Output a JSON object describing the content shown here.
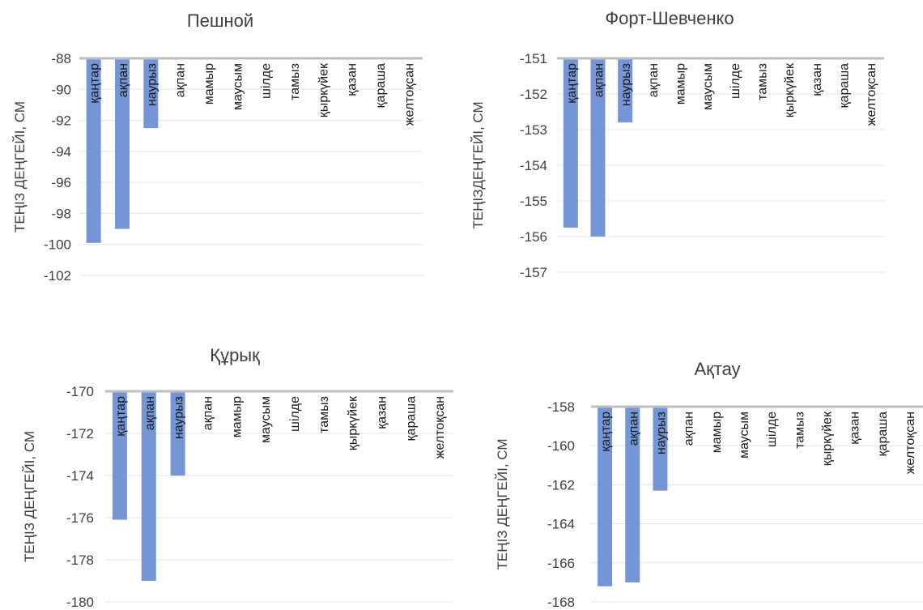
{
  "colors": {
    "bar": "#7496d6",
    "axis": "#bfbfbf",
    "grid": "#e6e6e6",
    "text": "#404040"
  },
  "chart_data": [
    {
      "type": "bar",
      "title": "Пешной",
      "ylabel": "ТЕҢІЗ ДЕҢГЕЙІ, СМ",
      "xlabel": "",
      "categories": [
        "қаңтар",
        "ақпан",
        "наурыз",
        "ақпан",
        "мамыр",
        "маусым",
        "шілде",
        "тамыз",
        "қыркүйек",
        "қазан",
        "қараша",
        "желтоқсан"
      ],
      "values": [
        -99.9,
        -99.0,
        -92.5,
        null,
        null,
        null,
        null,
        null,
        null,
        null,
        null,
        null
      ],
      "ylim": [
        -102,
        -88
      ],
      "yticks": [
        "-88",
        "-90",
        "-92",
        "-94",
        "-96",
        "-98",
        "-100",
        "-102"
      ],
      "grid": true
    },
    {
      "type": "bar",
      "title": "Форт-Шевченко",
      "ylabel": "ТЕҢІЗДЕҢГЕЙІ, СМ",
      "xlabel": "",
      "categories": [
        "қаңтар",
        "ақпан",
        "наурыз",
        "ақпан",
        "мамыр",
        "маусым",
        "шілде",
        "тамыз",
        "қыркүйек",
        "қазан",
        "қараша",
        "желтоқсан"
      ],
      "values": [
        -155.75,
        -156.0,
        -152.8,
        null,
        null,
        null,
        null,
        null,
        null,
        null,
        null,
        null
      ],
      "ylim": [
        -157,
        -151
      ],
      "yticks": [
        "-151",
        "-152",
        "-153",
        "-154",
        "-155",
        "-156",
        "-157"
      ],
      "grid": true
    },
    {
      "type": "bar",
      "title": "Құрық",
      "ylabel": "ТЕҢІЗ ДЕҢГЕЙІ, СМ",
      "xlabel": "",
      "categories": [
        "қаңтар",
        "ақпан",
        "наурыз",
        "ақпан",
        "мамыр",
        "маусым",
        "шілде",
        "тамыз",
        "қыркүйек",
        "қазан",
        "қараша",
        "желтоқсан"
      ],
      "values": [
        -176.1,
        -179.0,
        -174.0,
        null,
        null,
        null,
        null,
        null,
        null,
        null,
        null,
        null
      ],
      "ylim": [
        -180,
        -170
      ],
      "yticks": [
        "-170",
        "-172",
        "-174",
        "-176",
        "-178",
        "-180"
      ],
      "grid": true
    },
    {
      "type": "bar",
      "title": "Ақтау",
      "ylabel": "ТЕҢІЗ ДЕҢГЕЙІ, СМ",
      "xlabel": "",
      "categories": [
        "қаңтар",
        "ақпан",
        "наурыз",
        "ақпан",
        "мамыр",
        "маусым",
        "шілде",
        "тамыз",
        "қыркүйек",
        "қазан",
        "қараша",
        "желтоқсан"
      ],
      "values": [
        -167.2,
        -167.0,
        -162.3,
        null,
        null,
        null,
        null,
        null,
        null,
        null,
        null,
        null
      ],
      "ylim": [
        -168,
        -158
      ],
      "yticks": [
        "-158",
        "-160",
        "-162",
        "-164",
        "-166",
        "-168"
      ],
      "grid": true
    }
  ]
}
